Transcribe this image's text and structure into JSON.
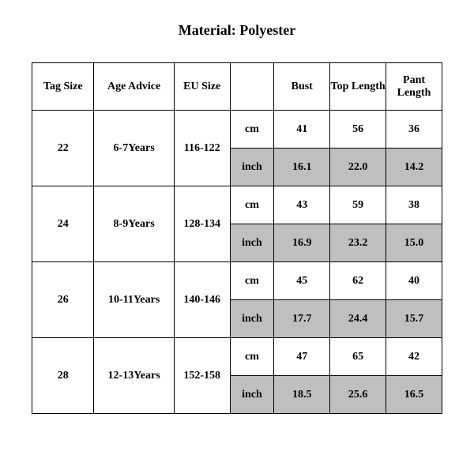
{
  "title": "Material: Polyester",
  "colors": {
    "background": "#ffffff",
    "text": "#000000",
    "border": "#000000",
    "shaded": "#bfbfbf"
  },
  "typography": {
    "font_family": "Times New Roman",
    "title_fontsize_pt": 14,
    "cell_fontsize_pt": 11,
    "weight": "bold"
  },
  "table": {
    "columns": [
      "Tag Size",
      "Age Advice",
      "EU Size",
      "",
      "Bust",
      "Top Length",
      "Pant Length"
    ],
    "unit_labels": {
      "cm": "cm",
      "inch": "inch"
    },
    "rows": [
      {
        "tag_size": "22",
        "age_advice": "6-7Years",
        "eu_size": "116-122",
        "cm": {
          "bust": "41",
          "top_length": "56",
          "pant_length": "36"
        },
        "inch": {
          "bust": "16.1",
          "top_length": "22.0",
          "pant_length": "14.2"
        }
      },
      {
        "tag_size": "24",
        "age_advice": "8-9Years",
        "eu_size": "128-134",
        "cm": {
          "bust": "43",
          "top_length": "59",
          "pant_length": "38"
        },
        "inch": {
          "bust": "16.9",
          "top_length": "23.2",
          "pant_length": "15.0"
        }
      },
      {
        "tag_size": "26",
        "age_advice": "10-11Years",
        "eu_size": "140-146",
        "cm": {
          "bust": "45",
          "top_length": "62",
          "pant_length": "40"
        },
        "inch": {
          "bust": "17.7",
          "top_length": "24.4",
          "pant_length": "15.7"
        }
      },
      {
        "tag_size": "28",
        "age_advice": "12-13Years",
        "eu_size": "152-158",
        "cm": {
          "bust": "47",
          "top_length": "65",
          "pant_length": "42"
        },
        "inch": {
          "bust": "18.5",
          "top_length": "25.6",
          "pant_length": "16.5"
        }
      }
    ]
  }
}
